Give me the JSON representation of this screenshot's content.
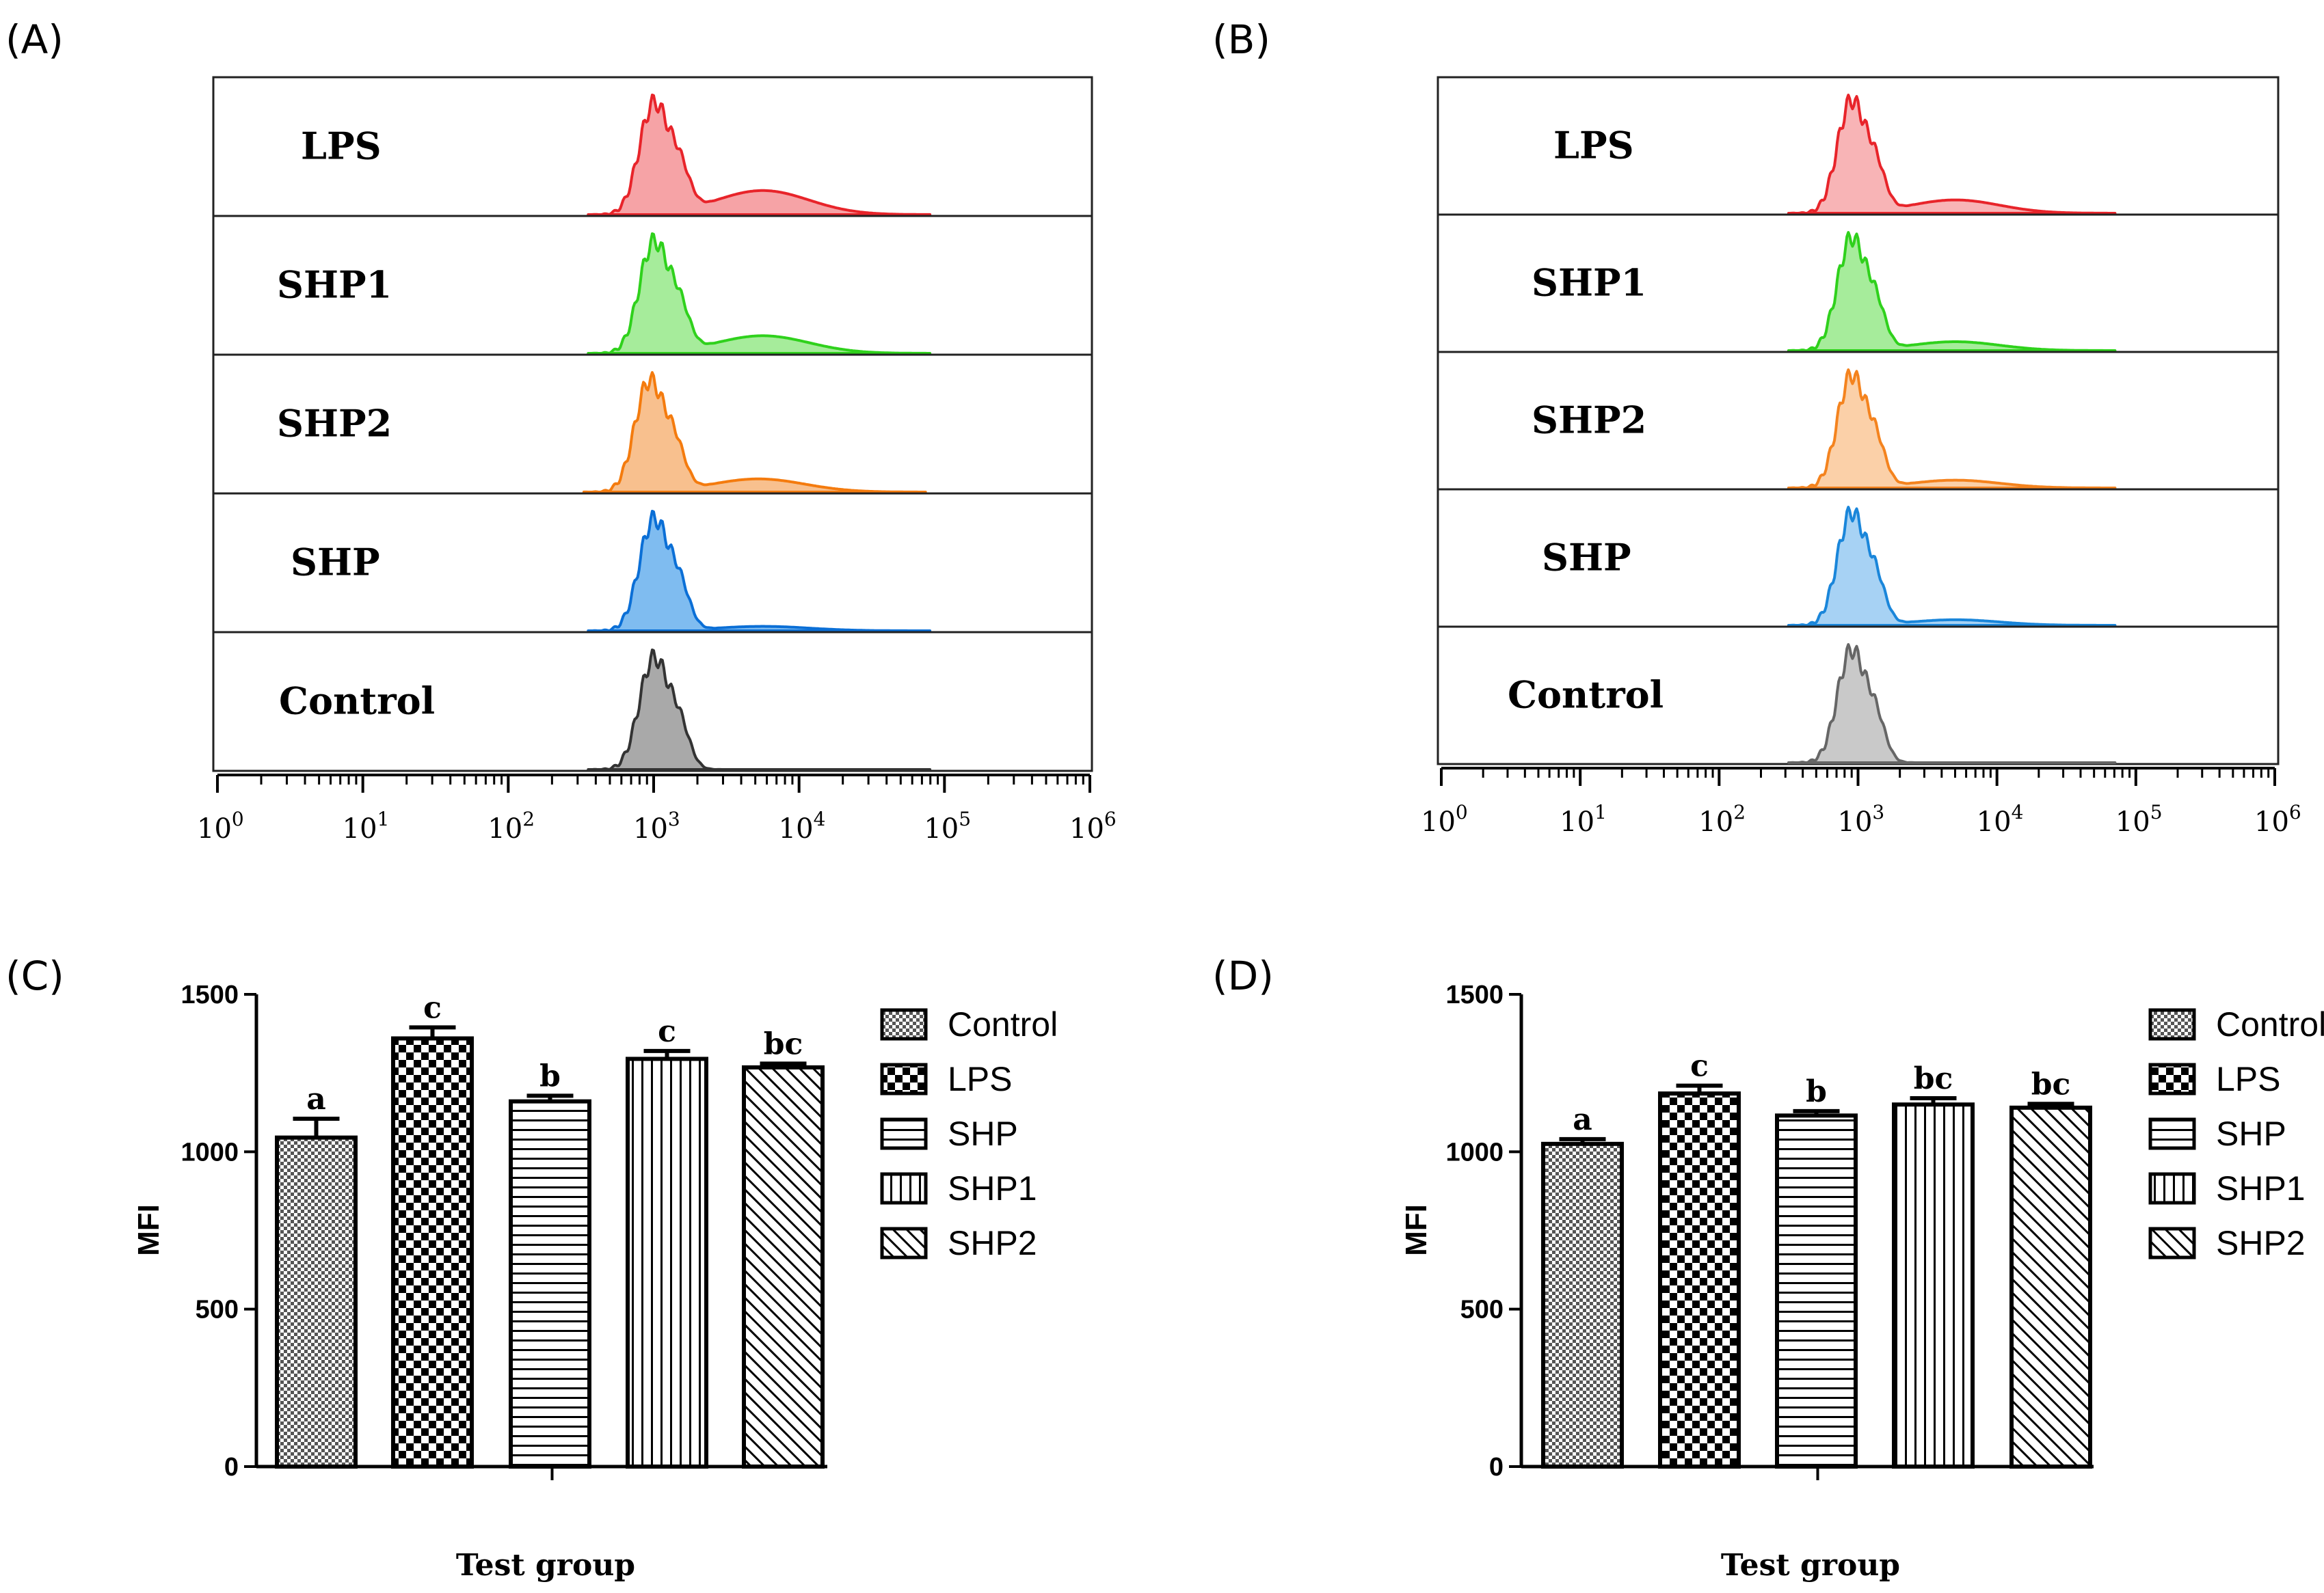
{
  "histogram_panels": [
    {
      "label": "(A)",
      "rows": [
        {
          "name": "LPS",
          "color": "#e8242a",
          "fill": "#f6a3a6",
          "peak_log": 3.0,
          "tail": 0.22
        },
        {
          "name": "SHP1",
          "color": "#2fd11c",
          "fill": "#a6ec9b",
          "peak_log": 3.0,
          "tail": 0.16
        },
        {
          "name": "SHP2",
          "color": "#f47b0e",
          "fill": "#f8c08e",
          "peak_log": 2.97,
          "tail": 0.12
        },
        {
          "name": "SHP",
          "color": "#0b6fd6",
          "fill": "#7fbcf0",
          "peak_log": 3.0,
          "tail": 0.04
        },
        {
          "name": "Control",
          "color": "#333333",
          "fill": "#a9a9a9",
          "peak_log": 3.0,
          "tail": 0.0
        }
      ],
      "axis_ticks": [
        "0",
        "1",
        "2",
        "3",
        "4",
        "5",
        "6"
      ],
      "axis_base": "10"
    },
    {
      "label": "(B)",
      "rows": [
        {
          "name": "LPS",
          "color": "#e8242a",
          "fill": "#f8b4b6",
          "peak_log": 2.95,
          "tail": 0.12
        },
        {
          "name": "SHP1",
          "color": "#2fd11c",
          "fill": "#a6ec9b",
          "peak_log": 2.95,
          "tail": 0.08
        },
        {
          "name": "SHP2",
          "color": "#f4831e",
          "fill": "#fbd0a8",
          "peak_log": 2.95,
          "tail": 0.07
        },
        {
          "name": "SHP",
          "color": "#1a86da",
          "fill": "#a7d2f4",
          "peak_log": 2.95,
          "tail": 0.05
        },
        {
          "name": "Control",
          "color": "#666666",
          "fill": "#c9c9c9",
          "peak_log": 2.95,
          "tail": 0.0
        }
      ],
      "axis_ticks": [
        "0",
        "1",
        "2",
        "3",
        "4",
        "5",
        "6"
      ],
      "axis_base": "10"
    }
  ],
  "chart_data": [
    {
      "type": "bar",
      "panel": "(C)",
      "categories": [
        "Control",
        "LPS",
        "SHP",
        "SHP1",
        "SHP2"
      ],
      "values": [
        1045,
        1360,
        1160,
        1295,
        1268
      ],
      "errors": [
        60,
        35,
        18,
        25,
        12
      ],
      "significance": [
        "a",
        "c",
        "b",
        "c",
        "bc"
      ],
      "patterns": [
        "dots",
        "checker",
        "hlines",
        "vlines",
        "diag"
      ],
      "xlabel": "Test group",
      "ylabel": "MFI",
      "ylim": [
        0,
        1500
      ],
      "yticks": [
        "0",
        "500",
        "1000",
        "1500"
      ],
      "legend": [
        "Control",
        "LPS",
        "SHP",
        "SHP1",
        "SHP2"
      ]
    },
    {
      "type": "bar",
      "panel": "(D)",
      "categories": [
        "Control",
        "LPS",
        "SHP",
        "SHP1",
        "SHP2"
      ],
      "values": [
        1025,
        1185,
        1115,
        1150,
        1140
      ],
      "errors": [
        15,
        25,
        14,
        20,
        12
      ],
      "significance": [
        "a",
        "c",
        "b",
        "bc",
        "bc"
      ],
      "patterns": [
        "dots",
        "checker",
        "hlines",
        "vlines",
        "diag"
      ],
      "xlabel": "Test group",
      "ylabel": "MFI",
      "ylim": [
        0,
        1500
      ],
      "yticks": [
        "0",
        "500",
        "1000",
        "1500"
      ],
      "legend": [
        "Control",
        "LPS",
        "SHP",
        "SHP1",
        "SHP2"
      ]
    }
  ]
}
